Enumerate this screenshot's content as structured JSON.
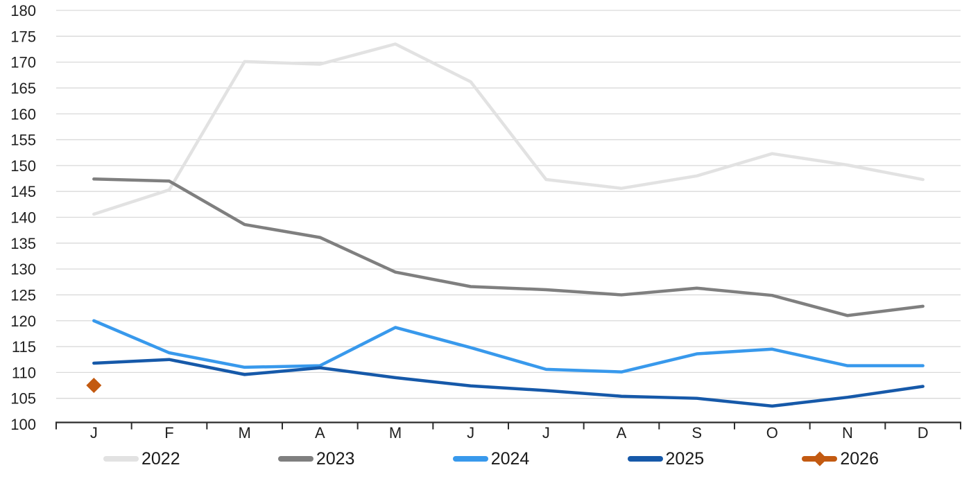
{
  "chart_data": {
    "type": "line",
    "title": "",
    "xlabel": "",
    "ylabel": "",
    "categories": [
      "J",
      "F",
      "M",
      "A",
      "M",
      "J",
      "J",
      "A",
      "S",
      "O",
      "N",
      "D"
    ],
    "series": [
      {
        "name": "2022",
        "color": "#e2e2e2",
        "marker": "none",
        "values": [
          140.6,
          145.3,
          170.1,
          169.6,
          173.5,
          166.2,
          147.3,
          145.6,
          148.0,
          152.3,
          150.1,
          147.3
        ]
      },
      {
        "name": "2023",
        "color": "#7f7f7f",
        "marker": "none",
        "values": [
          147.4,
          147.0,
          138.6,
          136.1,
          129.4,
          126.6,
          126.0,
          125.0,
          126.3,
          124.9,
          121.0,
          122.8
        ]
      },
      {
        "name": "2024",
        "color": "#3899ec",
        "marker": "none",
        "values": [
          120.0,
          113.8,
          111.0,
          111.3,
          118.7,
          114.8,
          110.6,
          110.1,
          113.6,
          114.5,
          111.3,
          111.3
        ]
      },
      {
        "name": "2025",
        "color": "#1659a9",
        "marker": "none",
        "values": [
          111.8,
          112.5,
          109.6,
          110.9,
          109.0,
          107.4,
          106.5,
          105.4,
          105.0,
          103.5,
          105.2,
          107.3
        ]
      },
      {
        "name": "2026",
        "color": "#c35a11",
        "marker": "diamond",
        "values": [
          107.5
        ]
      }
    ],
    "ylim": [
      100,
      180
    ],
    "ytick_step": 5,
    "grid": "horizontal",
    "legend_position": "bottom"
  },
  "style": {
    "gridline_color": "#d9d9d9",
    "axis_color": "#2b2b2b",
    "tick_label_color": "#1f1f1f"
  }
}
